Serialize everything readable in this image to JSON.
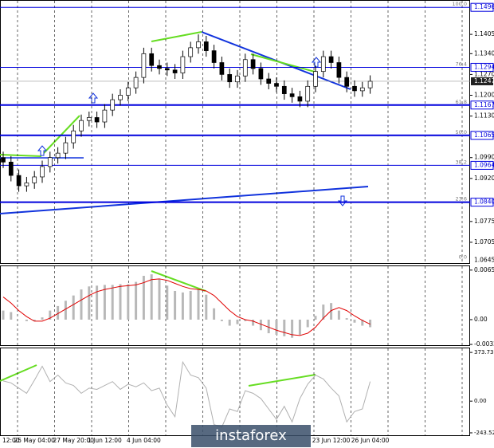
{
  "chart_data": [
    {
      "type": "candlestick",
      "categories": [
        null,
        "12:00",
        null,
        null,
        "25 May 04:00",
        null,
        null,
        null,
        null,
        "27 May 20:00",
        null,
        null,
        null,
        "1 Jun 12:00",
        null,
        null,
        null,
        null,
        "4 Jun 04:00",
        null,
        null,
        null,
        null,
        null,
        null,
        null,
        null,
        null,
        null,
        null,
        null,
        null,
        null,
        null,
        null,
        null,
        null,
        null,
        null,
        null,
        null,
        null,
        "23 Jun 12:00",
        null,
        null,
        null,
        null,
        "26 Jun 04:00"
      ],
      "open": [
        1.099,
        1.0975,
        1.093,
        1.0895,
        1.0905,
        1.0925,
        1.096,
        1.099,
        1.1005,
        1.104,
        1.108,
        1.1115,
        1.1125,
        1.111,
        1.115,
        1.1185,
        1.12,
        1.1225,
        1.126,
        1.134,
        1.13,
        1.129,
        1.1285,
        1.1275,
        1.133,
        1.136,
        1.138,
        1.135,
        1.131,
        1.127,
        1.1245,
        1.1265,
        1.132,
        1.129,
        1.1255,
        1.124,
        1.123,
        1.1205,
        1.1195,
        1.118,
        1.123,
        1.128,
        1.133,
        1.131,
        1.126,
        1.123,
        1.1215,
        1.1225
      ],
      "high": [
        1.101,
        1.0995,
        1.095,
        1.0925,
        1.0945,
        1.098,
        1.101,
        1.1025,
        1.106,
        1.11,
        1.1135,
        1.1145,
        1.1145,
        1.117,
        1.1205,
        1.122,
        1.1245,
        1.128,
        1.136,
        1.136,
        1.132,
        1.131,
        1.1305,
        1.135,
        1.138,
        1.1405,
        1.14,
        1.137,
        1.133,
        1.129,
        1.1285,
        1.134,
        1.134,
        1.131,
        1.1275,
        1.126,
        1.125,
        1.1225,
        1.1215,
        1.125,
        1.13,
        1.135,
        1.135,
        1.133,
        1.128,
        1.125,
        1.1245,
        1.1267
      ],
      "low": [
        1.0955,
        1.091,
        1.0875,
        1.0875,
        1.0885,
        1.0905,
        1.094,
        1.097,
        1.0985,
        1.102,
        1.106,
        1.1095,
        1.109,
        1.109,
        1.113,
        1.1165,
        1.118,
        1.1205,
        1.124,
        1.128,
        1.127,
        1.1265,
        1.1255,
        1.1255,
        1.131,
        1.134,
        1.133,
        1.129,
        1.125,
        1.1225,
        1.1225,
        1.1245,
        1.127,
        1.1235,
        1.122,
        1.121,
        1.1185,
        1.1175,
        1.116,
        1.116,
        1.121,
        1.126,
        1.129,
        1.124,
        1.121,
        1.1195,
        1.1195,
        1.1205
      ],
      "close": [
        1.0975,
        1.093,
        1.0895,
        1.0905,
        1.0925,
        1.096,
        1.099,
        1.1005,
        1.104,
        1.108,
        1.1115,
        1.1125,
        1.111,
        1.115,
        1.1185,
        1.12,
        1.1225,
        1.126,
        1.134,
        1.13,
        1.129,
        1.1285,
        1.1275,
        1.133,
        1.136,
        1.138,
        1.135,
        1.131,
        1.127,
        1.1245,
        1.1265,
        1.132,
        1.129,
        1.1255,
        1.124,
        1.123,
        1.1205,
        1.1195,
        1.118,
        1.123,
        1.128,
        1.133,
        1.131,
        1.126,
        1.123,
        1.1215,
        1.1225,
        1.1247
      ],
      "ylim": [
        1.0635,
        1.1518
      ],
      "yticks": [
        1.1405,
        {
          "value": 1.134,
          "label": "1.1340"
        },
        {
          "value": 1.127,
          "label": "1.1270"
        },
        {
          "value": 1.12,
          "label": "1.1200"
        },
        {
          "value": 1.113,
          "label": "1.1130"
        },
        {
          "value": 1.099,
          "label": "1.0990"
        },
        {
          "value": 1.092,
          "label": "1.0920"
        },
        1.0775,
        1.0705
      ],
      "levels": [
        {
          "value": 1.1496,
          "fib": "100.0",
          "line": "thin"
        },
        {
          "value": 1.1294,
          "fib": "76.4",
          "line": "thin"
        },
        {
          "value": 1.1167,
          "fib": "61.8",
          "line": "thick"
        },
        {
          "value": 1.1065,
          "fib": "50.0",
          "line": "thick"
        },
        {
          "value": 1.0964,
          "fib": "38.2",
          "line": "thin"
        },
        {
          "value": 1.084,
          "label": "1.0840",
          "fib": "23.6",
          "line": "thick"
        },
        {
          "value": 1.0645,
          "fib": "0.0",
          "line": "none"
        }
      ],
      "last": 1.1247,
      "level_color": "#0000dd"
    },
    {
      "type": "combo",
      "ylim": [
        -0.00338,
        0.00707
      ],
      "yticks": [
        0.00656,
        {
          "value": 0,
          "label": "0.00"
        },
        -0.00328
      ],
      "series": [
        {
          "type": "bar",
          "color": "#b8b8b8",
          "values": [
            0.0012,
            0.001,
            0.0,
            -0.0002,
            -0.0002,
            0.0003,
            0.0012,
            0.0018,
            0.0025,
            0.0032,
            0.004,
            0.0044,
            0.0045,
            0.0046,
            0.0046,
            0.0047,
            0.0047,
            0.005,
            0.0058,
            0.006,
            0.0054,
            0.0045,
            0.0038,
            0.0036,
            0.0038,
            0.004,
            0.0033,
            0.0015,
            -0.0002,
            -0.0008,
            -0.0006,
            -0.0002,
            -0.0008,
            -0.0014,
            -0.0018,
            -0.002,
            -0.0022,
            -0.0024,
            -0.002,
            -0.001,
            0.0005,
            0.002,
            0.0022,
            0.0012,
            0.0002,
            -0.0004,
            -0.0008,
            -0.001
          ]
        },
        {
          "type": "line",
          "color": "#e00000",
          "values": [
            0.003,
            0.0022,
            0.0012,
            0.0004,
            -0.0002,
            -0.0002,
            0.0002,
            0.0008,
            0.0014,
            0.002,
            0.0026,
            0.0032,
            0.0037,
            0.004,
            0.0042,
            0.0044,
            0.0045,
            0.0046,
            0.0049,
            0.0053,
            0.0054,
            0.0052,
            0.0048,
            0.0044,
            0.0041,
            0.004,
            0.0038,
            0.0032,
            0.0022,
            0.0012,
            0.0004,
            0.0,
            -0.0002,
            -0.0006,
            -0.001,
            -0.0014,
            -0.0017,
            -0.002,
            -0.0021,
            -0.0018,
            -0.001,
            0.0002,
            0.0012,
            0.0016,
            0.0012,
            0.0005,
            -0.0001,
            -0.0006
          ]
        }
      ]
    },
    {
      "type": "line",
      "ylim": [
        -262,
        405
      ],
      "yticks": [
        373.7321,
        {
          "value": 0,
          "label": "0.00"
        },
        {
          "value": -243.527,
          "label": "-243.5270"
        }
      ],
      "color": "#b0b0b0",
      "values": [
        155,
        140,
        100,
        60,
        160,
        268,
        150,
        200,
        140,
        120,
        60,
        100,
        90,
        120,
        150,
        90,
        130,
        110,
        140,
        80,
        100,
        -30,
        -120,
        300,
        200,
        180,
        100,
        -180,
        -200,
        -60,
        -80,
        80,
        60,
        20,
        -60,
        -140,
        -40,
        -160,
        20,
        130,
        200,
        170,
        100,
        40,
        -160,
        -80,
        -60,
        150
      ]
    }
  ],
  "watermark": "instaforex"
}
